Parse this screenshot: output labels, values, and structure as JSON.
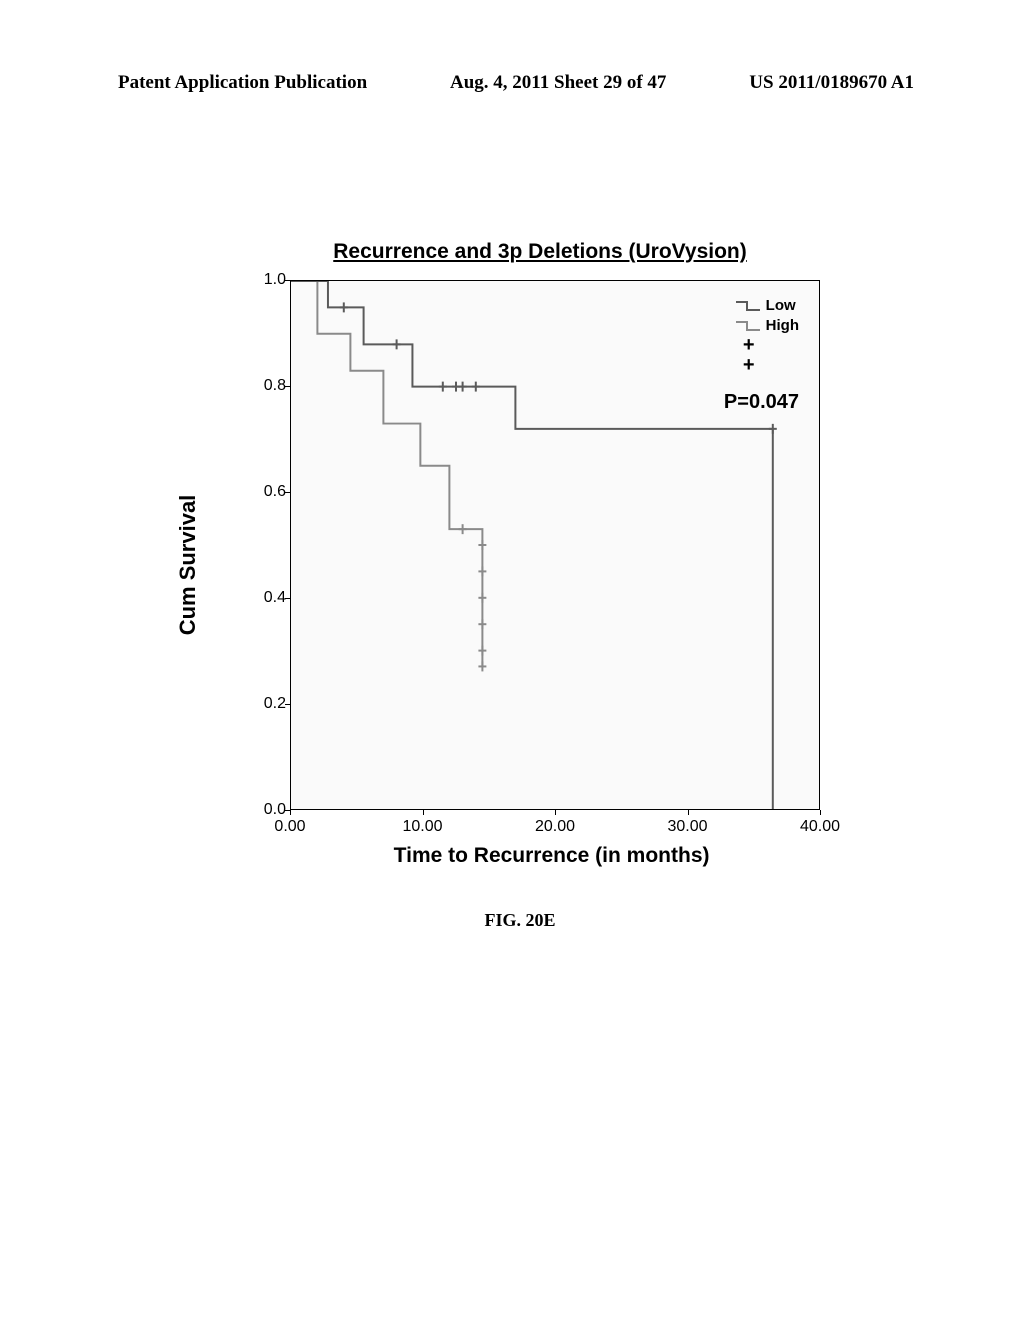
{
  "header": {
    "left": "Patent Application Publication",
    "center": "Aug. 4, 2011  Sheet 29 of 47",
    "right": "US 2011/0189670 A1"
  },
  "figure_caption": "FIG. 20E",
  "chart": {
    "type": "line",
    "title": "Recurrence and 3p Deletions (UroVysion)",
    "ylabel": "Cum Survival",
    "xlabel": "Time to Recurrence (in months)",
    "p_value_text": "P=0.047",
    "xlim": [
      0,
      40
    ],
    "ylim": [
      0,
      1
    ],
    "x_ticks": [
      0.0,
      10.0,
      20.0,
      30.0,
      40.0
    ],
    "x_tick_labels": [
      "0.00",
      "10.00",
      "20.00",
      "30.00",
      "40.00"
    ],
    "y_ticks": [
      0.0,
      0.2,
      0.4,
      0.6,
      0.8,
      1.0
    ],
    "y_tick_labels": [
      "0.0",
      "0.2",
      "0.4",
      "0.6",
      "0.8",
      "1.0"
    ],
    "background_color": "#fafafa",
    "border_color": "#000000",
    "legend": {
      "items": [
        {
          "label": "Low",
          "color": "#6a6a6a"
        },
        {
          "label": "High",
          "color": "#9a9a9a"
        }
      ],
      "censor_marks": [
        "+",
        "+"
      ]
    },
    "series_low": {
      "color": "#5a5a5a",
      "points": [
        [
          0.0,
          1.0
        ],
        [
          2.8,
          1.0
        ],
        [
          2.8,
          0.95
        ],
        [
          5.5,
          0.95
        ],
        [
          5.5,
          0.88
        ],
        [
          9.2,
          0.88
        ],
        [
          9.2,
          0.8
        ],
        [
          14.0,
          0.8
        ],
        [
          17.0,
          0.8
        ],
        [
          17.0,
          0.72
        ],
        [
          36.5,
          0.72
        ],
        [
          36.5,
          0.0
        ]
      ],
      "censor_ticks": [
        [
          4.0,
          0.95
        ],
        [
          8.0,
          0.88
        ],
        [
          11.5,
          0.8
        ],
        [
          12.5,
          0.8
        ],
        [
          13.0,
          0.8
        ],
        [
          14.0,
          0.8
        ],
        [
          36.5,
          0.72
        ]
      ]
    },
    "series_high": {
      "color": "#8a8a8a",
      "points": [
        [
          0.0,
          1.0
        ],
        [
          2.0,
          1.0
        ],
        [
          2.0,
          0.9
        ],
        [
          4.5,
          0.9
        ],
        [
          4.5,
          0.83
        ],
        [
          7.0,
          0.83
        ],
        [
          7.0,
          0.73
        ],
        [
          9.8,
          0.73
        ],
        [
          9.8,
          0.65
        ],
        [
          12.0,
          0.65
        ],
        [
          12.0,
          0.53
        ],
        [
          14.5,
          0.53
        ],
        [
          14.5,
          0.27
        ]
      ],
      "censor_ticks": [
        [
          13.0,
          0.53
        ],
        [
          14.5,
          0.5
        ],
        [
          14.5,
          0.45
        ],
        [
          14.5,
          0.4
        ],
        [
          14.5,
          0.35
        ],
        [
          14.5,
          0.3
        ],
        [
          14.5,
          0.27
        ]
      ]
    }
  }
}
